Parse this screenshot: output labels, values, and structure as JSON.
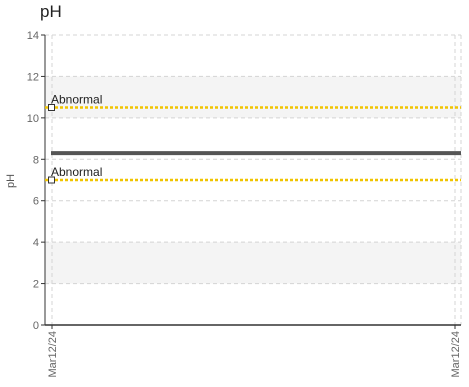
{
  "chart_data": {
    "type": "line",
    "title": "pH",
    "xlabel": "",
    "ylabel": "pH",
    "ylim": [
      0,
      14
    ],
    "yticks": [
      0,
      2,
      4,
      6,
      8,
      10,
      12,
      14
    ],
    "x_tick_labels": [
      "Mar12/24",
      "Mar12/24"
    ],
    "grid": true,
    "shaded_bands": [
      [
        2,
        4
      ],
      [
        10,
        12
      ]
    ],
    "series": [
      {
        "values": [
          8.3,
          8.3
        ],
        "color": "#555555"
      }
    ],
    "thresholds": [
      {
        "label": "Abnormal",
        "value": 10.5,
        "color": "#f0c400"
      },
      {
        "label": "Abnormal",
        "value": 7.0,
        "color": "#f0c400"
      }
    ]
  }
}
